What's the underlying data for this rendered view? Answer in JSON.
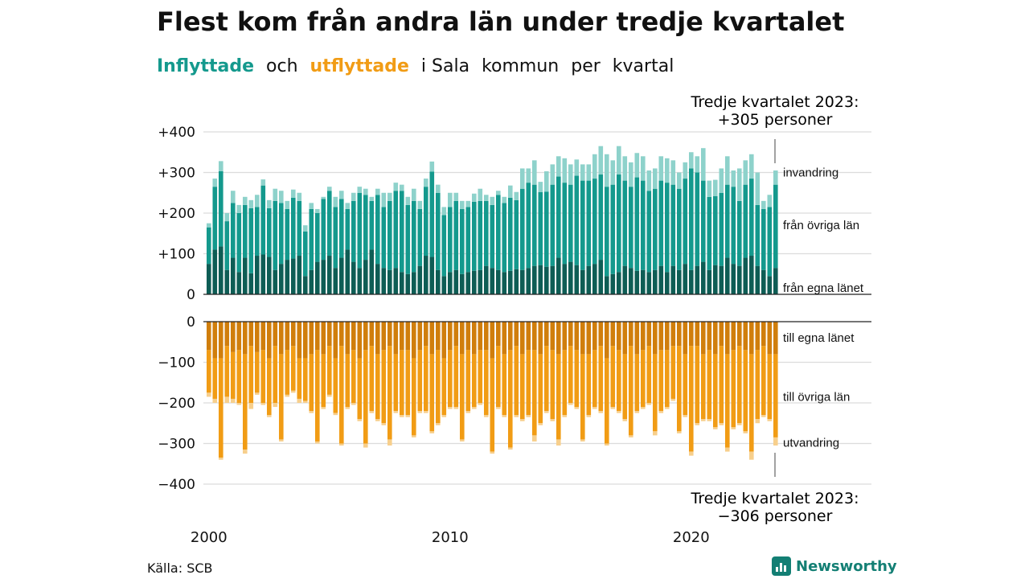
{
  "header": {
    "title": "Flest kom från andra län under tredje kvartalet",
    "subtitle_parts": [
      "Inflyttade",
      "och",
      "utflyttade",
      "i Sala",
      "kommun",
      "per",
      "kvartal"
    ]
  },
  "annotations": {
    "top_line1": "Tredje kvartalet 2023:",
    "top_line2": "+305 personer",
    "bottom_line1": "Tredje kvartalet 2023:",
    "bottom_line2": "−306 personer"
  },
  "footer": {
    "source": "Källa: SCB",
    "brand": "Newsworthy"
  },
  "colors": {
    "inf_own": "#0e5d55",
    "inf_other": "#14998d",
    "inf_imm": "#8ed2cb",
    "utf_own": "#d07e0c",
    "utf_other": "#f19c15",
    "utf_emig": "#f7cf8c"
  },
  "chart_data": {
    "type": "bar",
    "stacked": true,
    "x": [
      "2000 Q1",
      "2000 Q2",
      "2000 Q3",
      "2000 Q4",
      "2001 Q1",
      "2001 Q2",
      "2001 Q3",
      "2001 Q4",
      "2002 Q1",
      "2002 Q2",
      "2002 Q3",
      "2002 Q4",
      "2003 Q1",
      "2003 Q2",
      "2003 Q3",
      "2003 Q4",
      "2004 Q1",
      "2004 Q2",
      "2004 Q3",
      "2004 Q4",
      "2005 Q1",
      "2005 Q2",
      "2005 Q3",
      "2005 Q4",
      "2006 Q1",
      "2006 Q2",
      "2006 Q3",
      "2006 Q4",
      "2007 Q1",
      "2007 Q2",
      "2007 Q3",
      "2007 Q4",
      "2008 Q1",
      "2008 Q2",
      "2008 Q3",
      "2008 Q4",
      "2009 Q1",
      "2009 Q2",
      "2009 Q3",
      "2009 Q4",
      "2010 Q1",
      "2010 Q2",
      "2010 Q3",
      "2010 Q4",
      "2011 Q1",
      "2011 Q2",
      "2011 Q3",
      "2011 Q4",
      "2012 Q1",
      "2012 Q2",
      "2012 Q3",
      "2012 Q4",
      "2013 Q1",
      "2013 Q2",
      "2013 Q3",
      "2013 Q4",
      "2014 Q1",
      "2014 Q2",
      "2014 Q3",
      "2014 Q4",
      "2015 Q1",
      "2015 Q2",
      "2015 Q3",
      "2015 Q4",
      "2016 Q1",
      "2016 Q2",
      "2016 Q3",
      "2016 Q4",
      "2017 Q1",
      "2017 Q2",
      "2017 Q3",
      "2017 Q4",
      "2018 Q1",
      "2018 Q2",
      "2018 Q3",
      "2018 Q4",
      "2019 Q1",
      "2019 Q2",
      "2019 Q3",
      "2019 Q4",
      "2020 Q1",
      "2020 Q2",
      "2020 Q3",
      "2020 Q4",
      "2021 Q1",
      "2021 Q2",
      "2021 Q3",
      "2021 Q4",
      "2022 Q1",
      "2022 Q2",
      "2022 Q3",
      "2022 Q4",
      "2023 Q1",
      "2023 Q2",
      "2023 Q3"
    ],
    "x_ticks": [
      {
        "label": "2000",
        "index": 0
      },
      {
        "label": "2010",
        "index": 40
      },
      {
        "label": "2020",
        "index": 80
      }
    ],
    "y_ticks_top": [
      "+400",
      "+300",
      "+200",
      "+100",
      "0"
    ],
    "y_ticks_bottom": [
      "0",
      "−100",
      "−200",
      "−300",
      "−400"
    ],
    "top_panel": {
      "ylim": [
        0,
        400
      ],
      "series": [
        {
          "name": "från egna länet",
          "values": [
            75,
            110,
            118,
            60,
            90,
            55,
            90,
            52,
            95,
            98,
            92,
            60,
            75,
            85,
            88,
            95,
            45,
            60,
            80,
            85,
            95,
            65,
            90,
            110,
            80,
            65,
            85,
            110,
            75,
            65,
            60,
            65,
            55,
            50,
            55,
            70,
            95,
            92,
            60,
            45,
            55,
            60,
            50,
            55,
            58,
            60,
            70,
            65,
            60,
            55,
            58,
            62,
            60,
            65,
            70,
            72,
            68,
            70,
            90,
            75,
            80,
            72,
            60,
            70,
            75,
            85,
            45,
            50,
            55,
            70,
            65,
            58,
            60,
            55,
            60,
            70,
            55,
            70,
            60,
            75,
            60,
            70,
            80,
            60,
            72,
            70,
            90,
            75,
            70,
            90,
            95,
            70,
            60,
            45,
            65
          ]
        },
        {
          "name": "från övriga län",
          "values": [
            90,
            155,
            185,
            120,
            135,
            145,
            130,
            160,
            120,
            170,
            120,
            170,
            150,
            125,
            150,
            135,
            110,
            150,
            120,
            150,
            160,
            150,
            145,
            100,
            150,
            185,
            160,
            120,
            170,
            150,
            170,
            190,
            200,
            170,
            175,
            140,
            170,
            210,
            190,
            150,
            160,
            170,
            160,
            160,
            170,
            170,
            160,
            155,
            185,
            170,
            180,
            170,
            200,
            210,
            200,
            180,
            185,
            200,
            200,
            200,
            190,
            220,
            220,
            210,
            210,
            210,
            220,
            220,
            240,
            210,
            200,
            230,
            220,
            200,
            200,
            210,
            220,
            200,
            200,
            210,
            250,
            230,
            200,
            180,
            170,
            180,
            180,
            190,
            160,
            180,
            190,
            150,
            150,
            170,
            205
          ]
        },
        {
          "name": "invandring",
          "values": [
            10,
            20,
            25,
            20,
            30,
            20,
            20,
            20,
            30,
            15,
            20,
            30,
            30,
            20,
            20,
            20,
            15,
            15,
            10,
            5,
            10,
            25,
            20,
            15,
            20,
            15,
            15,
            10,
            15,
            35,
            20,
            20,
            15,
            20,
            30,
            20,
            20,
            25,
            20,
            20,
            35,
            20,
            20,
            15,
            20,
            30,
            15,
            20,
            10,
            15,
            30,
            20,
            50,
            35,
            60,
            25,
            50,
            50,
            50,
            60,
            50,
            40,
            40,
            40,
            60,
            70,
            80,
            60,
            70,
            60,
            60,
            60,
            60,
            50,
            50,
            60,
            60,
            60,
            40,
            40,
            40,
            40,
            80,
            40,
            40,
            60,
            70,
            40,
            80,
            60,
            60,
            80,
            20,
            30,
            35
          ]
        }
      ]
    },
    "bottom_panel": {
      "ylim": [
        -400,
        0
      ],
      "series": [
        {
          "name": "till egna länet",
          "values": [
            -70,
            -90,
            -90,
            -60,
            -75,
            -70,
            -80,
            -60,
            -75,
            -70,
            -90,
            -60,
            -80,
            -70,
            -60,
            -90,
            -90,
            -80,
            -70,
            -80,
            -60,
            -90,
            -60,
            -80,
            -70,
            -90,
            -70,
            -60,
            -80,
            -70,
            -60,
            -80,
            -70,
            -70,
            -90,
            -70,
            -60,
            -80,
            -70,
            -90,
            -70,
            -60,
            -80,
            -70,
            -80,
            -70,
            -70,
            -90,
            -60,
            -80,
            -70,
            -60,
            -80,
            -70,
            -70,
            -80,
            -60,
            -70,
            -80,
            -70,
            -60,
            -70,
            -80,
            -80,
            -70,
            -60,
            -90,
            -60,
            -70,
            -80,
            -60,
            -80,
            -70,
            -60,
            -80,
            -70,
            -70,
            -60,
            -60,
            -80,
            -60,
            -60,
            -80,
            -70,
            -80,
            -60,
            -80,
            -70,
            -60,
            -70,
            -80,
            -70,
            -60,
            -80,
            -80
          ]
        },
        {
          "name": "till övriga län",
          "values": [
            -105,
            -100,
            -245,
            -125,
            -115,
            -130,
            -235,
            -140,
            -100,
            -130,
            -140,
            -140,
            -210,
            -110,
            -110,
            -100,
            -105,
            -140,
            -225,
            -130,
            -120,
            -135,
            -240,
            -130,
            -130,
            -150,
            -230,
            -160,
            -160,
            -180,
            -230,
            -140,
            -160,
            -160,
            -190,
            -150,
            -160,
            -190,
            -180,
            -140,
            -140,
            -150,
            -210,
            -150,
            -130,
            -130,
            -160,
            -230,
            -150,
            -150,
            -240,
            -170,
            -160,
            -160,
            -210,
            -170,
            -160,
            -170,
            -210,
            -160,
            -140,
            -140,
            -210,
            -150,
            -140,
            -160,
            -210,
            -150,
            -150,
            -160,
            -220,
            -140,
            -140,
            -140,
            -190,
            -150,
            -140,
            -130,
            -210,
            -150,
            -260,
            -190,
            -160,
            -170,
            -180,
            -190,
            -230,
            -190,
            -190,
            -200,
            -240,
            -170,
            -170,
            -160,
            -205
          ]
        },
        {
          "name": "utvandring",
          "values": [
            -10,
            -10,
            -5,
            -15,
            -10,
            -5,
            -10,
            -15,
            -5,
            -5,
            -5,
            -10,
            -5,
            -5,
            -5,
            -10,
            -5,
            -5,
            -5,
            -5,
            -5,
            -5,
            -5,
            -5,
            -5,
            -5,
            -10,
            -5,
            -5,
            -5,
            -15,
            -5,
            -5,
            -5,
            -5,
            -5,
            -5,
            -5,
            -5,
            -5,
            -5,
            -5,
            -5,
            -5,
            -5,
            -5,
            -5,
            -5,
            -5,
            -5,
            -5,
            -5,
            -5,
            -5,
            -15,
            -5,
            -5,
            -5,
            -15,
            -5,
            -5,
            -5,
            -5,
            -5,
            -5,
            -5,
            -5,
            -5,
            -5,
            -5,
            -5,
            -5,
            -5,
            -5,
            -10,
            -5,
            -5,
            -5,
            -5,
            -5,
            -10,
            -5,
            -5,
            -5,
            -5,
            -5,
            -10,
            -5,
            -5,
            -5,
            -20,
            -10,
            -5,
            -5,
            -20
          ]
        }
      ]
    }
  }
}
